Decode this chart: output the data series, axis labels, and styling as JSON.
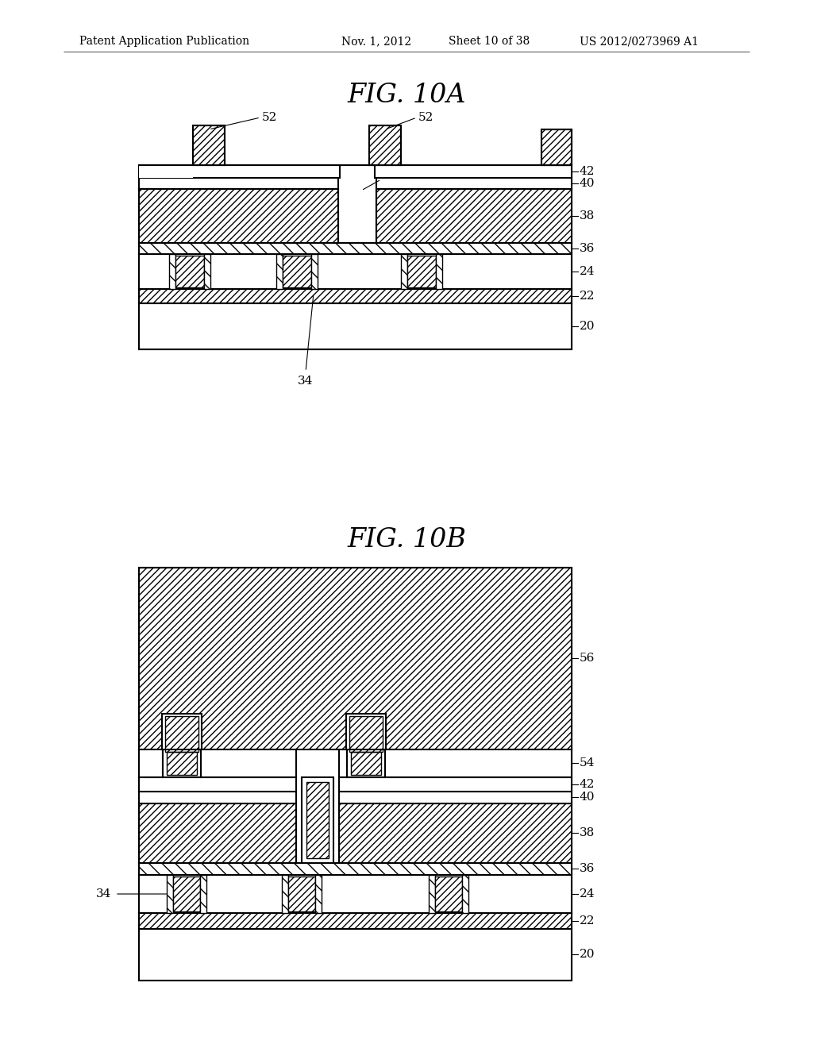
{
  "bg_color": "#ffffff",
  "header_left": "Patent Application Publication",
  "header_mid": "Nov. 1, 2012   Sheet 10 of 38",
  "header_right": "US 2012/0273969 A1",
  "fig_a_title": "FIG. 10A",
  "fig_b_title": "FIG. 10B"
}
